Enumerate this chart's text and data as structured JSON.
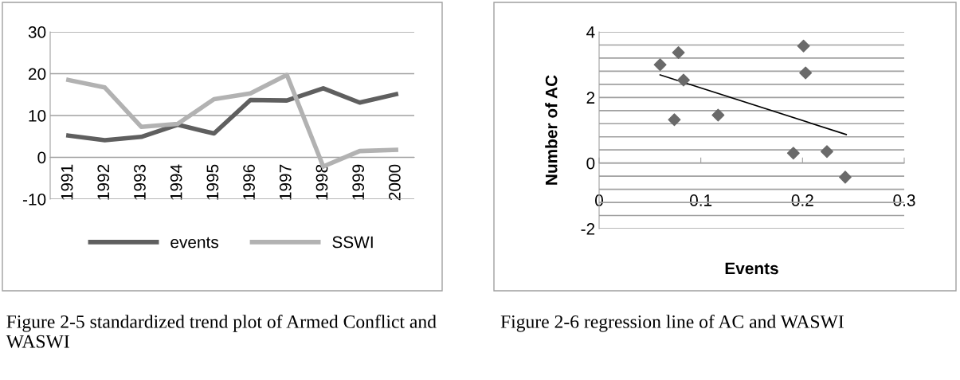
{
  "chart_data": [
    {
      "type": "line",
      "categories": [
        "1991",
        "1992",
        "1993",
        "1994",
        "1995",
        "1996",
        "1997",
        "1998",
        "1999",
        "2000"
      ],
      "series": [
        {
          "name": "events",
          "color": "#5f5f5f",
          "values": [
            5.2,
            4.1,
            4.9,
            7.8,
            5.7,
            13.7,
            13.6,
            16.5,
            13.1,
            15.1
          ]
        },
        {
          "name": "SSWI",
          "color": "#b2b2b2",
          "values": [
            18.5,
            16.7,
            7.3,
            8.0,
            13.9,
            15.3,
            19.7,
            -2.2,
            1.5,
            1.8
          ]
        }
      ],
      "ylim": [
        -10,
        30
      ],
      "yticks": [
        -10,
        0,
        10,
        20,
        30
      ],
      "grid": "y",
      "legend": "bottom",
      "marker": "none",
      "line_style": "solid",
      "annotations": [
        "Figure 2-5 standardized trend plot of Armed Conflict and WASWI"
      ]
    },
    {
      "type": "scatter",
      "xlabel": "Events",
      "ylabel": "Number of AC",
      "series": [
        {
          "color": "#6a6a6a",
          "marker": "diamond",
          "x": [
            0.06,
            0.078,
            0.083,
            0.074,
            0.117,
            0.201,
            0.203,
            0.191,
            0.224,
            0.242
          ],
          "values": [
            3.0,
            3.37,
            2.53,
            1.32,
            1.46,
            3.57,
            2.75,
            0.3,
            0.35,
            -0.43
          ]
        },
        {
          "type": "line",
          "color": "#000000",
          "x": [
            0.06,
            0.243
          ],
          "values": [
            2.69,
            0.87
          ]
        }
      ],
      "xlim": [
        0,
        0.3
      ],
      "xticks": [
        0,
        0.1,
        0.2,
        0.3
      ],
      "ylim": [
        -2,
        4
      ],
      "yticks": [
        -2,
        {
          "value": -1.6,
          "label": null
        },
        {
          "value": -1.2,
          "label": null
        },
        {
          "value": -0.8,
          "label": null
        },
        {
          "value": -0.4,
          "label": null
        },
        0,
        {
          "value": 0.4,
          "label": null
        },
        {
          "value": 0.8,
          "label": null
        },
        {
          "value": 1.2,
          "label": null
        },
        {
          "value": 1.6,
          "label": null
        },
        2,
        {
          "value": 2.4,
          "label": null
        },
        {
          "value": 2.8,
          "label": null
        },
        {
          "value": 3.2,
          "label": null
        },
        {
          "value": 3.6,
          "label": null
        },
        4
      ],
      "grid": "y",
      "annotations": [
        "Figure 2-6 regression line of AC and WASWI"
      ]
    }
  ]
}
